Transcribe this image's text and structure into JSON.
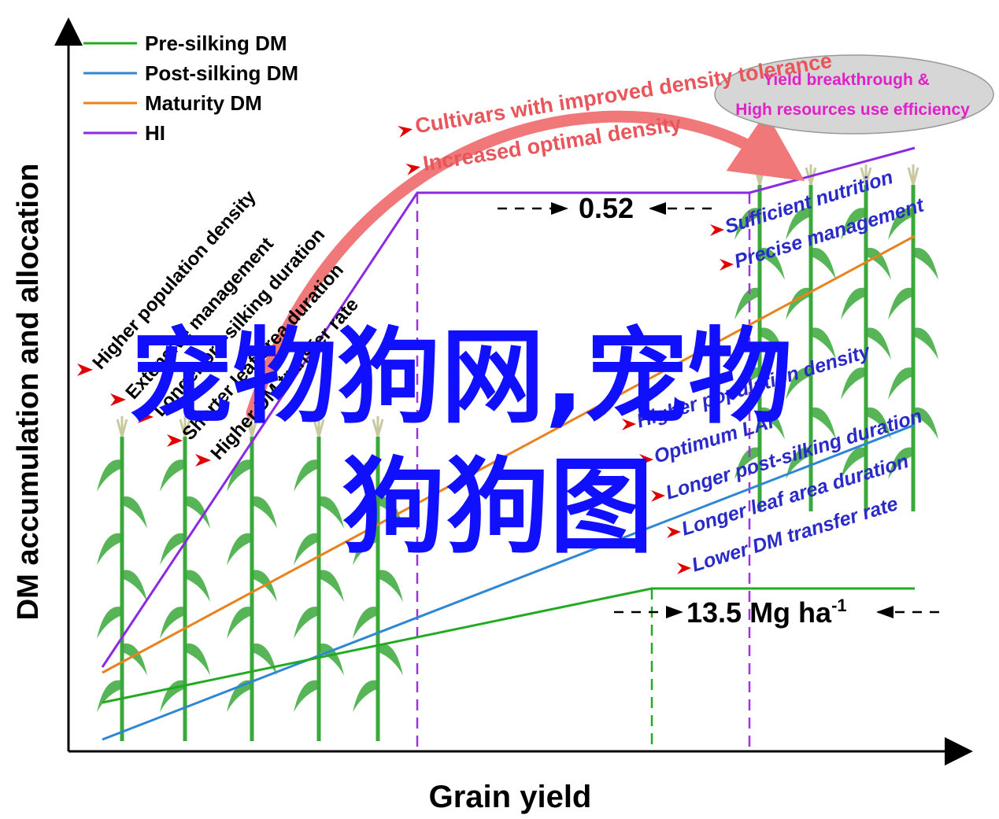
{
  "axes": {
    "y_label": "DM accumulation and allocation",
    "x_label": "Grain yield"
  },
  "legend": [
    {
      "label": "Pre-silking DM",
      "color": "#22aa22"
    },
    {
      "label": "Post-silking DM",
      "color": "#2e86d4"
    },
    {
      "label": "Maturity DM",
      "color": "#e8821e"
    },
    {
      "label": "HI",
      "color": "#8a2be2"
    }
  ],
  "left_factors": [
    "Higher population density",
    "Extensive management",
    "Longer pre-silking duration",
    "Shorter leaf area duration",
    "Higher DM transfer rate"
  ],
  "right_factors_top": [
    "Sufficient nutrition",
    "Precise management"
  ],
  "right_factors_bottom": [
    "Higher population density",
    "Optimum LAI",
    "Longer  post-silking duration",
    "Longer leaf area duration",
    "Lower DM transfer rate"
  ],
  "arrow_labels": [
    "Cultivars with improved density tolerance",
    "Increased optimal density"
  ],
  "ellipse": {
    "line1": "Yield breakthrough &",
    "line2": "High resources use efficiency"
  },
  "hi_value": "0.52",
  "yield_value": "13.5 Mg ha",
  "yield_superscript": "-1",
  "watermark": {
    "line1": "宠物狗网,宠物",
    "line2": "狗狗图"
  },
  "colors": {
    "pre_silking": "#22aa22",
    "post_silking": "#2e86d4",
    "maturity": "#e8821e",
    "hi": "#8a2be2",
    "arrow": "#f07878",
    "factor_text": "#2a2ac8",
    "red_text": "#e8555a",
    "ellipse_text": "#e020c8",
    "watermark": "#1010ff",
    "corn": "#3aa83a"
  }
}
